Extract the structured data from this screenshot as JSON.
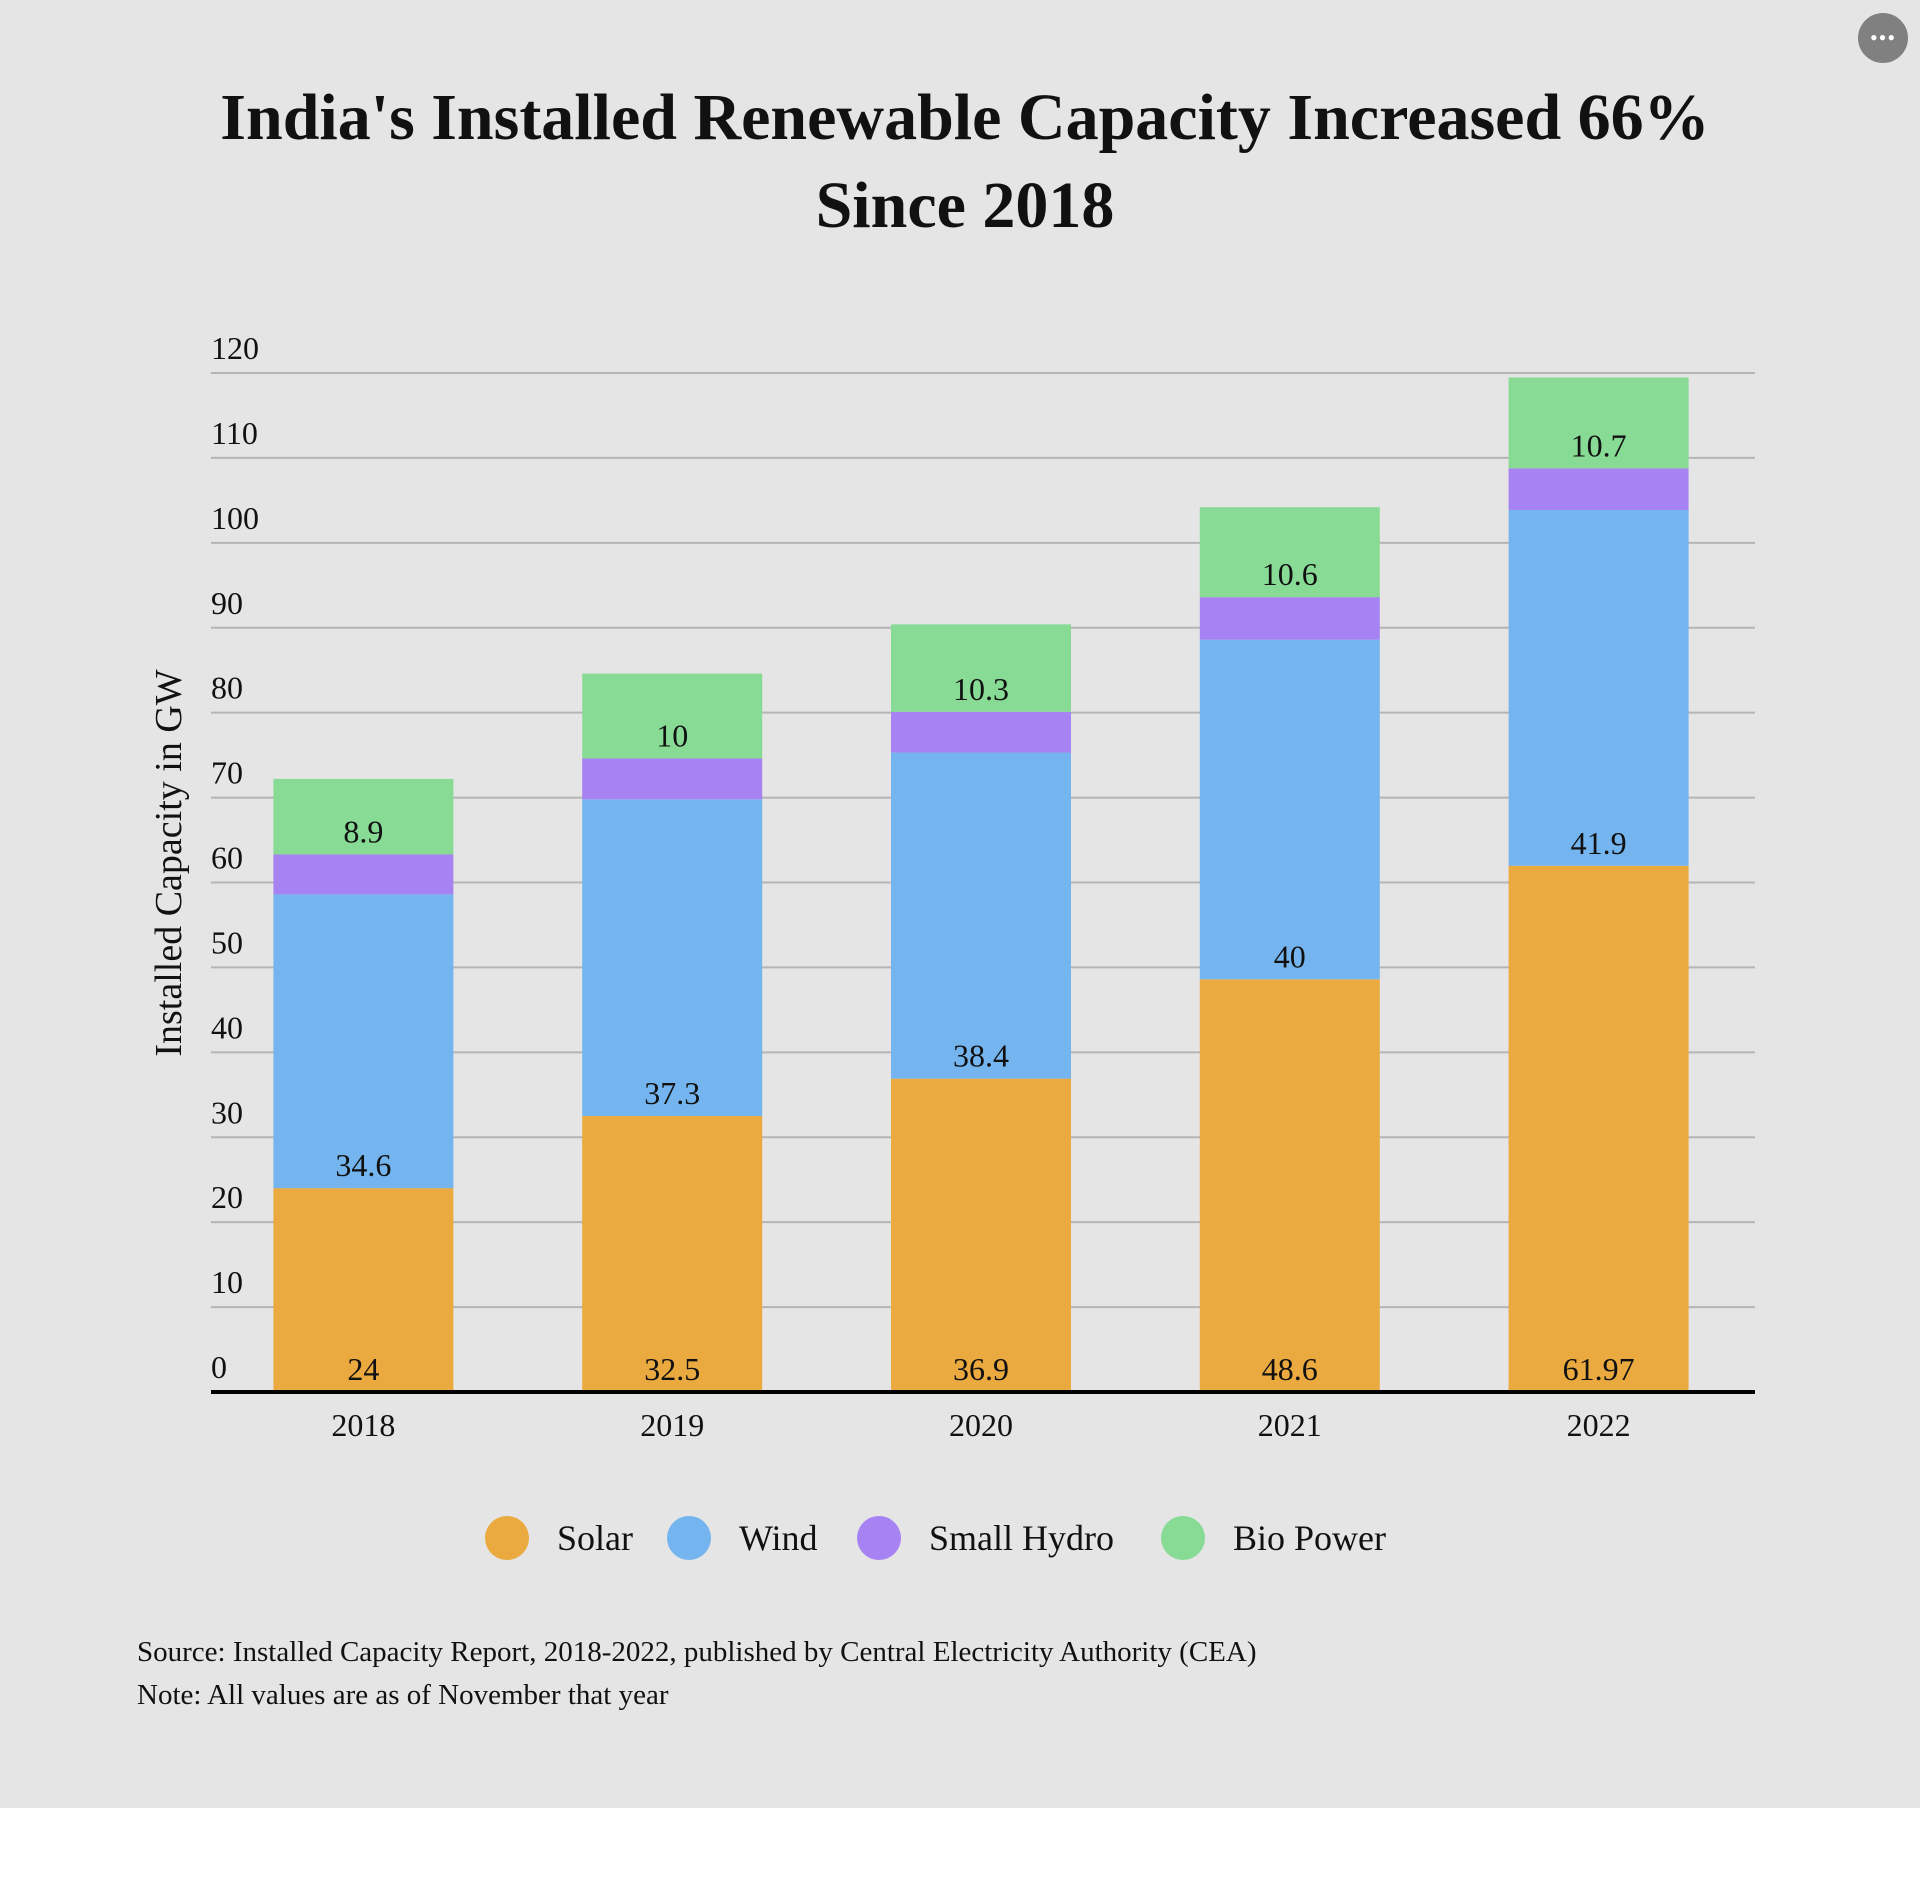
{
  "title_line1": "India's Installed Renewable Capacity Increased 66%",
  "title_line2": "Since 2018",
  "more_button_icon": "ellipsis-icon",
  "source": "Source: Installed Capacity Report, 2018-2022, published by Central Electricity Authority (CEA)",
  "note": "Note: All values are as of November that year",
  "background_color": "#e5e5e5",
  "chart_data": {
    "type": "bar",
    "stacked": true,
    "title": "India's Installed Renewable Capacity Increased 66% Since 2018",
    "xlabel": "",
    "ylabel": "Installed Capacity in GW",
    "ylim": [
      0,
      120
    ],
    "yticks": [
      0,
      10,
      20,
      30,
      40,
      50,
      60,
      70,
      80,
      90,
      100,
      110,
      120
    ],
    "grid": true,
    "legend_position": "bottom",
    "categories": [
      "2018",
      "2019",
      "2020",
      "2021",
      "2022"
    ],
    "series": [
      {
        "name": "Solar",
        "color": "#ebaa40",
        "values": [
          24,
          32.5,
          36.9,
          48.6,
          61.97
        ],
        "labels": [
          "24",
          "32.5",
          "36.9",
          "48.6",
          "61.97"
        ]
      },
      {
        "name": "Wind",
        "color": "#74b5f0",
        "values": [
          34.6,
          37.3,
          38.4,
          40,
          41.9
        ],
        "labels": [
          "34.6",
          "37.3",
          "38.4",
          "40",
          "41.9"
        ]
      },
      {
        "name": "Small Hydro",
        "color": "#a682f2",
        "values": [
          4.7,
          4.8,
          4.8,
          5.0,
          4.9
        ],
        "labels": [
          "",
          "",
          "",
          "",
          ""
        ]
      },
      {
        "name": "Bio Power",
        "color": "#88db95",
        "values": [
          8.9,
          10,
          10.3,
          10.6,
          10.7
        ],
        "labels": [
          "8.9",
          "10",
          "10.3",
          "10.6",
          "10.7"
        ]
      }
    ]
  }
}
